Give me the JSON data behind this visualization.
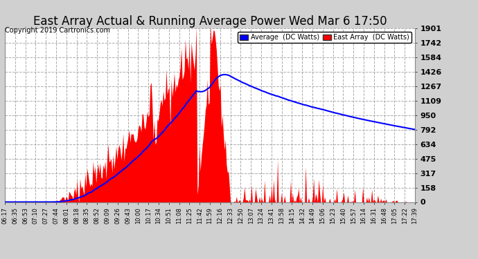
{
  "title": "East Array Actual & Running Average Power Wed Mar 6 17:50",
  "copyright": "Copyright 2019 Cartronics.com",
  "ylabel_right_ticks": [
    0.0,
    158.4,
    316.8,
    475.2,
    633.6,
    792.0,
    950.4,
    1108.9,
    1267.3,
    1425.7,
    1584.1,
    1742.5,
    1900.9
  ],
  "ymax": 1900.9,
  "ymin": 0.0,
  "bg_color": "#d0d0d0",
  "plot_bg_color": "#ffffff",
  "fill_color": "#ff0000",
  "avg_line_color": "#0000ff",
  "title_fontsize": 12,
  "copyright_fontsize": 7,
  "legend_labels": [
    "Average  (DC Watts)",
    "East Array  (DC Watts)"
  ],
  "legend_colors": [
    "#0000ff",
    "#ff0000"
  ],
  "x_tick_labels": [
    "06:17",
    "06:35",
    "06:53",
    "07:10",
    "07:27",
    "07:44",
    "08:01",
    "08:18",
    "08:35",
    "08:52",
    "09:09",
    "09:26",
    "09:43",
    "10:00",
    "10:17",
    "10:34",
    "10:51",
    "11:08",
    "11:25",
    "11:42",
    "11:59",
    "12:16",
    "12:33",
    "12:50",
    "13:07",
    "13:24",
    "13:41",
    "13:58",
    "14:15",
    "14:32",
    "14:49",
    "15:06",
    "15:23",
    "15:40",
    "15:57",
    "16:14",
    "16:31",
    "16:48",
    "17:05",
    "17:22",
    "17:39"
  ]
}
